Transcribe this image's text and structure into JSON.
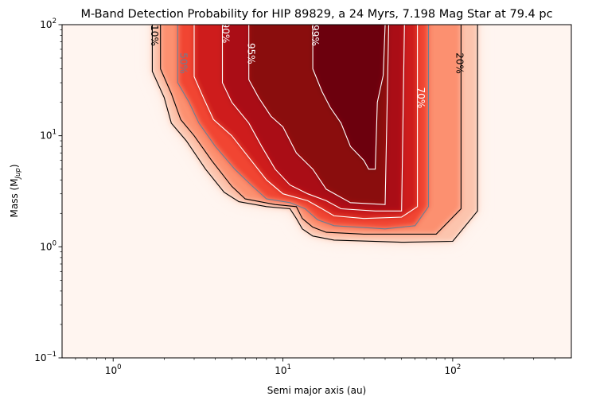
{
  "chart_data": {
    "type": "heatmap",
    "title": "M-Band Detection Probability for HIP 89829, a 24 Myrs, 7.198 Mag Star at 79.4 pc",
    "xlabel": "Semi major axis (au)",
    "ylabel": "Mass (M",
    "ylabel_sub": "Jup",
    "ylabel_close": ")",
    "x_scale": "log",
    "y_scale": "log",
    "xlim": [
      0.5,
      500
    ],
    "ylim": [
      0.1,
      100
    ],
    "x_ticks": [
      {
        "value": 1,
        "base": "10",
        "exp": "0"
      },
      {
        "value": 10,
        "base": "10",
        "exp": "1"
      },
      {
        "value": 100,
        "base": "10",
        "exp": "2"
      }
    ],
    "y_ticks": [
      {
        "value": 0.1,
        "base": "10",
        "exp": "−1"
      },
      {
        "value": 1,
        "base": "10",
        "exp": "0"
      },
      {
        "value": 10,
        "base": "10",
        "exp": "1"
      },
      {
        "value": 100,
        "base": "10",
        "exp": "2"
      }
    ],
    "colormap": "Reds",
    "grid": false,
    "legend": "none",
    "contours": [
      {
        "level": 0.1,
        "label": "10%",
        "color": "#000000",
        "label_at": {
          "a": 1.75,
          "m": 80
        },
        "points": [
          [
            1.7,
            100
          ],
          [
            1.7,
            38
          ],
          [
            2.0,
            22
          ],
          [
            2.2,
            13
          ],
          [
            2.7,
            9
          ],
          [
            3.5,
            5
          ],
          [
            4.5,
            3.1
          ],
          [
            5.5,
            2.55
          ],
          [
            8.0,
            2.3
          ],
          [
            11,
            2.2
          ],
          [
            12,
            1.8
          ],
          [
            13,
            1.45
          ],
          [
            15,
            1.25
          ],
          [
            20,
            1.15
          ],
          [
            50,
            1.1
          ],
          [
            100,
            1.12
          ],
          [
            140,
            2.1
          ],
          [
            140,
            100
          ]
        ]
      },
      {
        "level": 0.2,
        "label": "20%",
        "color": "#000000",
        "label_at": {
          "a": 110,
          "m": 45
        },
        "points": [
          [
            1.9,
            100
          ],
          [
            1.9,
            40
          ],
          [
            2.2,
            24
          ],
          [
            2.5,
            14
          ],
          [
            3.0,
            10
          ],
          [
            3.8,
            6
          ],
          [
            5.0,
            3.5
          ],
          [
            6.0,
            2.7
          ],
          [
            9.0,
            2.4
          ],
          [
            12,
            2.3
          ],
          [
            13,
            1.8
          ],
          [
            15,
            1.5
          ],
          [
            18,
            1.35
          ],
          [
            30,
            1.3
          ],
          [
            80,
            1.3
          ],
          [
            112,
            2.2
          ],
          [
            112,
            100
          ]
        ]
      },
      {
        "level": 0.5,
        "label": "50%",
        "color": "#6a7f94",
        "label_at": {
          "a": 2.6,
          "m": 45
        },
        "points": [
          [
            2.4,
            100
          ],
          [
            2.4,
            30
          ],
          [
            2.8,
            20
          ],
          [
            3.2,
            13
          ],
          [
            4.0,
            8
          ],
          [
            5.2,
            5
          ],
          [
            6.5,
            3.6
          ],
          [
            8.0,
            2.7
          ],
          [
            11,
            2.5
          ],
          [
            13.5,
            2.2
          ],
          [
            16,
            1.75
          ],
          [
            20,
            1.55
          ],
          [
            40,
            1.45
          ],
          [
            60,
            1.55
          ],
          [
            72,
            2.3
          ],
          [
            72,
            100
          ]
        ]
      },
      {
        "level": 0.7,
        "label": "70%",
        "color": "#ffffff",
        "label_at": {
          "a": 65,
          "m": 22
        },
        "points": [
          [
            3.0,
            100
          ],
          [
            3.0,
            34
          ],
          [
            3.4,
            22
          ],
          [
            3.9,
            14
          ],
          [
            5.0,
            10
          ],
          [
            6.5,
            6
          ],
          [
            8.0,
            4.0
          ],
          [
            10,
            3.0
          ],
          [
            14,
            2.6
          ],
          [
            17,
            2.2
          ],
          [
            20,
            1.9
          ],
          [
            30,
            1.8
          ],
          [
            50,
            1.85
          ],
          [
            62,
            2.3
          ],
          [
            62,
            100
          ]
        ]
      },
      {
        "level": 0.9,
        "label": "90%",
        "color": "#ffffff",
        "label_at": {
          "a": 4.6,
          "m": 85
        },
        "points": [
          [
            4.4,
            100
          ],
          [
            4.4,
            30
          ],
          [
            5.0,
            20
          ],
          [
            6.3,
            13
          ],
          [
            7.5,
            8
          ],
          [
            9.0,
            5
          ],
          [
            11,
            3.6
          ],
          [
            14,
            3.0
          ],
          [
            18,
            2.6
          ],
          [
            22,
            2.2
          ],
          [
            35,
            2.1
          ],
          [
            50,
            2.1
          ],
          [
            52,
            100
          ]
        ]
      },
      {
        "level": 0.95,
        "label": "95%",
        "color": "#ffffff",
        "label_at": {
          "a": 6.5,
          "m": 55
        },
        "points": [
          [
            6.3,
            100
          ],
          [
            6.3,
            32
          ],
          [
            7.2,
            22
          ],
          [
            8.5,
            15
          ],
          [
            10,
            12
          ],
          [
            12,
            7
          ],
          [
            15,
            5
          ],
          [
            18,
            3.3
          ],
          [
            25,
            2.5
          ],
          [
            40,
            2.4
          ],
          [
            42,
            100
          ]
        ]
      },
      {
        "level": 0.99,
        "label": "99%",
        "color": "#ffffff",
        "label_at": {
          "a": 15.5,
          "m": 80
        },
        "points": [
          [
            15,
            100
          ],
          [
            15,
            40
          ],
          [
            17,
            25
          ],
          [
            19,
            18
          ],
          [
            22,
            13
          ],
          [
            25,
            8
          ],
          [
            30,
            6
          ],
          [
            32,
            5
          ],
          [
            35,
            5
          ],
          [
            36,
            20
          ],
          [
            39,
            35
          ],
          [
            40,
            100
          ]
        ]
      }
    ]
  }
}
